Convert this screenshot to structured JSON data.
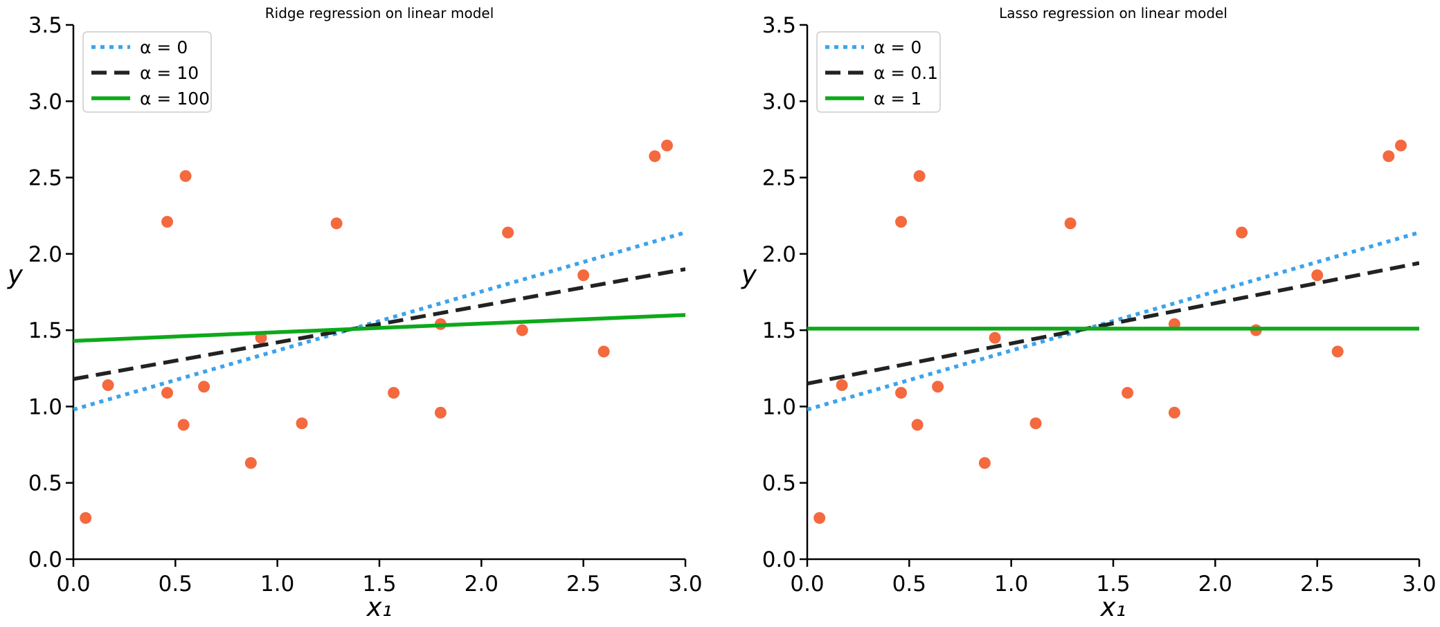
{
  "chart_data": [
    {
      "type": "scatter",
      "title": "Ridge regression on linear model",
      "xlabel": "x₁",
      "ylabel": "y",
      "xlim": [
        0,
        3
      ],
      "ylim": [
        0,
        3.5
      ],
      "xticks": [
        "0.0",
        "0.5",
        "1.0",
        "1.5",
        "2.0",
        "2.5",
        "3.0"
      ],
      "yticks": [
        "0.0",
        "0.5",
        "1.0",
        "1.5",
        "2.0",
        "2.5",
        "3.0",
        "3.5"
      ],
      "grid": false,
      "legend_position": "top-left",
      "points": {
        "color": "#f4693e",
        "x": [
          0.06,
          0.17,
          0.46,
          0.46,
          0.54,
          0.55,
          0.64,
          0.87,
          0.92,
          1.12,
          1.29,
          1.57,
          1.8,
          1.8,
          2.13,
          2.2,
          2.5,
          2.6,
          2.85,
          2.91
        ],
        "y": [
          0.27,
          1.14,
          2.21,
          1.09,
          0.88,
          2.51,
          1.13,
          0.63,
          1.45,
          0.89,
          2.2,
          1.09,
          0.96,
          1.54,
          2.14,
          1.5,
          1.86,
          1.36,
          2.64,
          2.71
        ]
      },
      "series": [
        {
          "name": "α = 0",
          "style": "dotted",
          "color": "#3ba3ec",
          "x": [
            0,
            3
          ],
          "y": [
            0.98,
            2.14
          ]
        },
        {
          "name": "α = 10",
          "style": "dashed",
          "color": "#222222",
          "x": [
            0,
            3
          ],
          "y": [
            1.18,
            1.9
          ]
        },
        {
          "name": "α = 100",
          "style": "solid",
          "color": "#0ea91b",
          "x": [
            0,
            3
          ],
          "y": [
            1.43,
            1.6
          ]
        }
      ]
    },
    {
      "type": "scatter",
      "title": "Lasso regression on linear model",
      "xlabel": "x₁",
      "ylabel": "y",
      "xlim": [
        0,
        3
      ],
      "ylim": [
        0,
        3.5
      ],
      "xticks": [
        "0.0",
        "0.5",
        "1.0",
        "1.5",
        "2.0",
        "2.5",
        "3.0"
      ],
      "yticks": [
        "0.0",
        "0.5",
        "1.0",
        "1.5",
        "2.0",
        "2.5",
        "3.0",
        "3.5"
      ],
      "grid": false,
      "legend_position": "top-left",
      "points": {
        "color": "#f4693e",
        "x": [
          0.06,
          0.17,
          0.46,
          0.46,
          0.54,
          0.55,
          0.64,
          0.87,
          0.92,
          1.12,
          1.29,
          1.57,
          1.8,
          1.8,
          2.13,
          2.2,
          2.5,
          2.6,
          2.85,
          2.91
        ],
        "y": [
          0.27,
          1.14,
          2.21,
          1.09,
          0.88,
          2.51,
          1.13,
          0.63,
          1.45,
          0.89,
          2.2,
          1.09,
          0.96,
          1.54,
          2.14,
          1.5,
          1.86,
          1.36,
          2.64,
          2.71
        ]
      },
      "series": [
        {
          "name": "α = 0",
          "style": "dotted",
          "color": "#3ba3ec",
          "x": [
            0,
            3
          ],
          "y": [
            0.98,
            2.14
          ]
        },
        {
          "name": "α = 0.1",
          "style": "dashed",
          "color": "#222222",
          "x": [
            0,
            3
          ],
          "y": [
            1.15,
            1.94
          ]
        },
        {
          "name": "α = 1",
          "style": "solid",
          "color": "#0ea91b",
          "x": [
            0,
            3
          ],
          "y": [
            1.51,
            1.51
          ]
        }
      ]
    }
  ]
}
